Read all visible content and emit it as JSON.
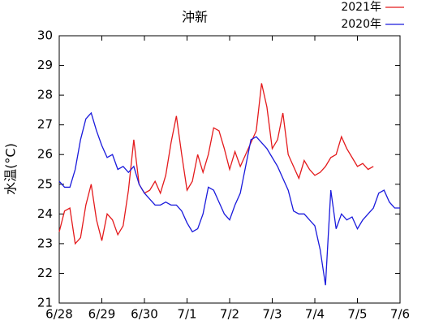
{
  "chart_data": {
    "type": "line",
    "title": "沖新",
    "y_label": "水温(°C)",
    "x": [
      0,
      0.125,
      0.25,
      0.375,
      0.5,
      0.625,
      0.75,
      0.875,
      1,
      1.125,
      1.25,
      1.375,
      1.5,
      1.625,
      1.75,
      1.875,
      2,
      2.125,
      2.25,
      2.375,
      2.5,
      2.625,
      2.75,
      2.875,
      3,
      3.125,
      3.25,
      3.375,
      3.5,
      3.625,
      3.75,
      3.875,
      4,
      4.125,
      4.25,
      4.375,
      4.5,
      4.625,
      4.75,
      4.875,
      5,
      5.125,
      5.25,
      5.375,
      5.5,
      5.625,
      5.75,
      5.875,
      6,
      6.125,
      6.25,
      6.375,
      6.5,
      6.625,
      6.75,
      6.875,
      7,
      7.125,
      7.25,
      7.375,
      7.5,
      7.625,
      7.75,
      7.875,
      8
    ],
    "series": [
      {
        "name": "2021年",
        "color": "#e41a1c",
        "values": [
          23.4,
          24.1,
          24.2,
          23.0,
          23.2,
          24.3,
          25.0,
          23.8,
          23.1,
          24.0,
          23.8,
          23.3,
          23.6,
          24.8,
          26.5,
          25.0,
          24.7,
          24.8,
          25.1,
          24.7,
          25.3,
          26.4,
          27.3,
          26.0,
          24.8,
          25.1,
          26.0,
          25.4,
          26.0,
          26.9,
          26.8,
          26.2,
          25.5,
          26.1,
          25.6,
          26.0,
          26.4,
          26.8,
          28.4,
          27.6,
          26.2,
          26.5,
          27.4,
          26.0,
          25.6,
          25.2,
          25.8,
          25.5,
          25.3,
          25.4,
          25.6,
          25.9,
          26.0,
          26.6,
          26.2,
          25.9,
          25.6,
          25.7,
          25.5,
          25.6,
          null,
          null,
          null,
          null,
          null
        ]
      },
      {
        "name": "2020年",
        "color": "#1a1adc",
        "values": [
          25.1,
          24.9,
          24.9,
          25.5,
          26.5,
          27.2,
          27.4,
          26.8,
          26.3,
          25.9,
          26.0,
          25.5,
          25.6,
          25.4,
          25.6,
          25.0,
          24.7,
          24.5,
          24.3,
          24.3,
          24.4,
          24.3,
          24.3,
          24.1,
          23.7,
          23.4,
          23.5,
          24.0,
          24.9,
          24.8,
          24.4,
          24.0,
          23.8,
          24.3,
          24.7,
          25.6,
          26.5,
          26.6,
          26.4,
          26.2,
          25.9,
          25.6,
          25.2,
          24.8,
          24.1,
          24.0,
          24.0,
          23.8,
          23.6,
          22.8,
          21.6,
          24.8,
          23.5,
          24.0,
          23.8,
          23.9,
          23.5,
          23.8,
          24.0,
          24.2,
          24.7,
          24.8,
          24.4,
          24.2,
          24.2
        ]
      }
    ],
    "xlim": [
      0,
      8
    ],
    "xticks": [
      {
        "value": 0,
        "label": "6/28"
      },
      {
        "value": 1,
        "label": "6/29"
      },
      {
        "value": 2,
        "label": "6/30"
      },
      {
        "value": 3,
        "label": "7/1"
      },
      {
        "value": 4,
        "label": "7/2"
      },
      {
        "value": 5,
        "label": "7/3"
      },
      {
        "value": 6,
        "label": "7/4"
      },
      {
        "value": 7,
        "label": "7/5"
      },
      {
        "value": 8,
        "label": "7/6"
      }
    ],
    "ylim": [
      21,
      30
    ],
    "yticks": [
      21,
      22,
      23,
      24,
      25,
      26,
      27,
      28,
      29,
      30
    ],
    "grid": false,
    "legend": "top-right"
  }
}
